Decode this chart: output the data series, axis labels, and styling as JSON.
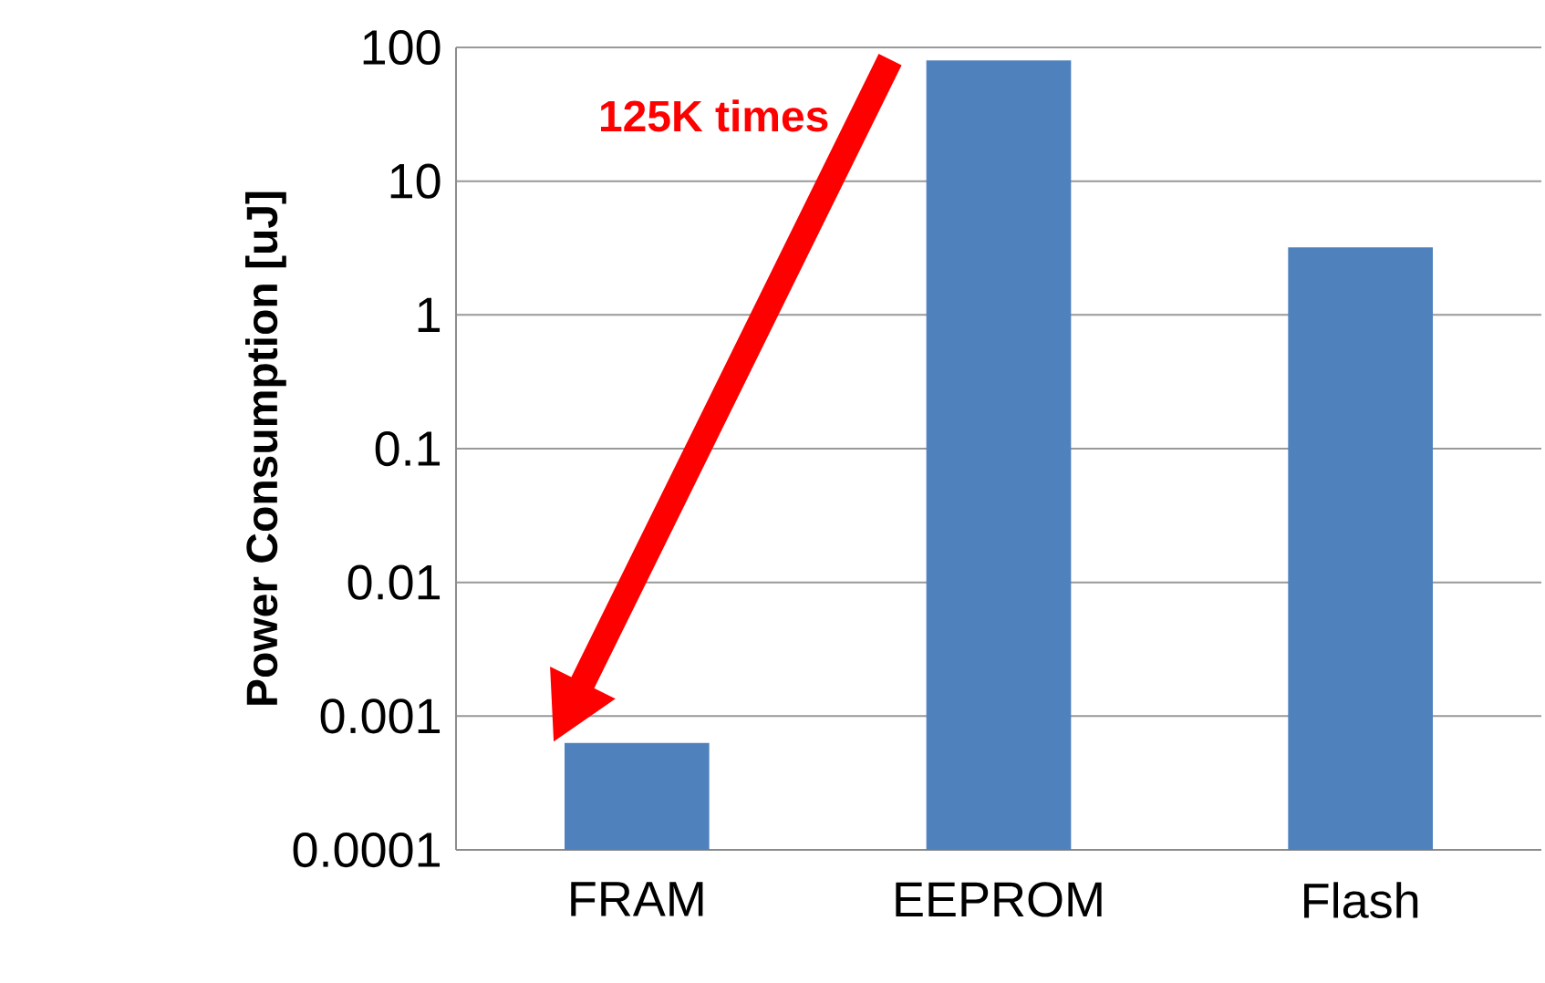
{
  "chart_data": {
    "type": "bar",
    "categories": [
      "FRAM",
      "EEPROM",
      "Flash"
    ],
    "values": [
      0.00063,
      80,
      3.2
    ],
    "color": "#4f81bd",
    "ylabel": "Power Consumption [uJ]",
    "log": true,
    "ylim": [
      0.0001,
      100
    ],
    "yticks": [
      0.0001,
      0.001,
      0.01,
      0.1,
      1,
      10,
      100
    ],
    "grid": "y",
    "annotations": [
      "125K times"
    ]
  }
}
